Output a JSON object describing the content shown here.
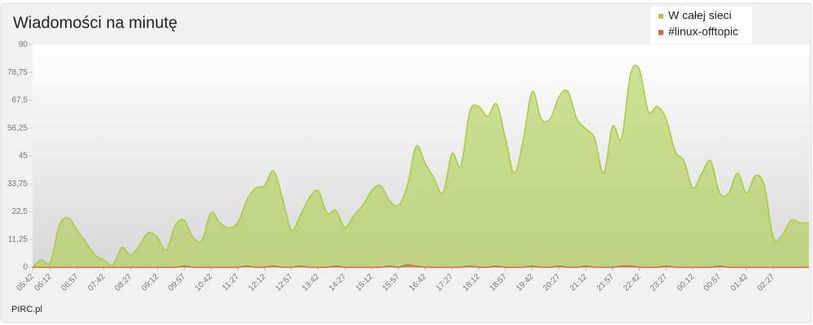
{
  "chart_data": {
    "type": "area",
    "title": "Wiadomości na minutę",
    "credit": "PIRC.pl",
    "categories": [
      "05:42",
      null,
      "06:12",
      null,
      null,
      "06:57",
      null,
      null,
      "07:42",
      null,
      null,
      "08:27",
      null,
      null,
      "09:12",
      null,
      null,
      "09:57",
      null,
      null,
      "10:42",
      null,
      null,
      "11:27",
      null,
      null,
      "12:12",
      null,
      null,
      "12:57",
      null,
      null,
      "13:42",
      null,
      null,
      "14:27",
      null,
      null,
      "15:12",
      null,
      null,
      "15:57",
      null,
      null,
      "16:42",
      null,
      null,
      "17:27",
      null,
      null,
      "18:12",
      null,
      null,
      "18:57",
      null,
      null,
      "19:42",
      null,
      null,
      "20:27",
      null,
      null,
      "21:12",
      null,
      null,
      "21:57",
      null,
      null,
      "22:42",
      null,
      null,
      "23:27",
      null,
      null,
      "00:12",
      null,
      null,
      "00:57",
      null,
      null,
      "01:42",
      null,
      null,
      "02:27",
      null,
      null,
      null,
      null
    ],
    "series": [
      {
        "name": "W całej sieci",
        "color": "#a8cc3c",
        "values": [
          0,
          3,
          2,
          17,
          20,
          15,
          10,
          5,
          3,
          1,
          8,
          5,
          9,
          14,
          12,
          7,
          17,
          19,
          12,
          11,
          22,
          18,
          16,
          18,
          27,
          32,
          33,
          39,
          28,
          15,
          21,
          28,
          31,
          22,
          23,
          16,
          21,
          25,
          31,
          33,
          27,
          25,
          33,
          49,
          42,
          36,
          30,
          46,
          41,
          63,
          65,
          61,
          66,
          52,
          38,
          52,
          71,
          60,
          60,
          69,
          71,
          60,
          56,
          52,
          38,
          57,
          52,
          78,
          80,
          63,
          65,
          60,
          47,
          43,
          32,
          38,
          43,
          30,
          30,
          38,
          30,
          37,
          33,
          12,
          13,
          19,
          18,
          18
        ]
      },
      {
        "name": "#linux-offtopic",
        "color": "#d9683b",
        "values": [
          0,
          0,
          0,
          0,
          0,
          0,
          0,
          0,
          0,
          0,
          0,
          0,
          0,
          0,
          0,
          0,
          0,
          0.5,
          0,
          0,
          0,
          0,
          0,
          0,
          0.5,
          0,
          0,
          0.5,
          0,
          0,
          0.5,
          0,
          0,
          0,
          0.5,
          0,
          0,
          0,
          0,
          0,
          0.5,
          0,
          1,
          0.5,
          0,
          0,
          0,
          0,
          0,
          0.5,
          0,
          0,
          0.5,
          0,
          0,
          0,
          0.5,
          0,
          0,
          0.5,
          0,
          0,
          0.5,
          0,
          0,
          0,
          0.5,
          0.5,
          0,
          0,
          0,
          0.5,
          0,
          0,
          0,
          0,
          0,
          0.5,
          0,
          0,
          0,
          0,
          0,
          0,
          0,
          0,
          0,
          0
        ]
      }
    ],
    "ylim": [
      0,
      90
    ],
    "yticks": [
      0,
      {
        "value": 11.25,
        "label": "11,25"
      },
      {
        "value": 22.5,
        "label": "22,5"
      },
      {
        "value": 33.75,
        "label": "33,75"
      },
      45,
      {
        "value": 56.25,
        "label": "56,25"
      },
      {
        "value": 67.5,
        "label": "67,5"
      },
      {
        "value": 78.75,
        "label": "78,75"
      },
      90
    ],
    "grid": false,
    "legend": "top-right"
  }
}
